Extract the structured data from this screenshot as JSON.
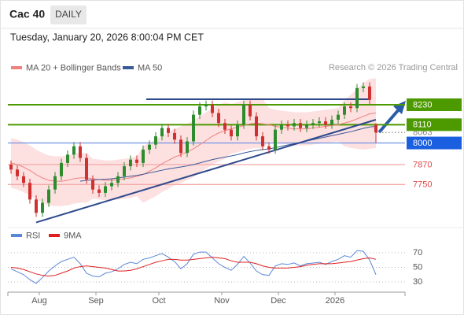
{
  "header": {
    "title": "Cac 40",
    "timeframe": "DAILY",
    "timestamp": "Tuesday, January 20, 2026 8:00:04 PM CET",
    "credit": "Research © 2026 Trading Central"
  },
  "chart_data": [
    {
      "type": "candlestick",
      "categories": [
        null,
        null,
        null,
        null,
        null,
        "Aug",
        null,
        null,
        null,
        null,
        null,
        null,
        null,
        null,
        "Sep",
        null,
        null,
        null,
        null,
        null,
        null,
        null,
        null,
        null,
        "Oct",
        null,
        null,
        null,
        null,
        null,
        null,
        null,
        null,
        null,
        "Nov",
        null,
        null,
        null,
        null,
        null,
        null,
        null,
        null,
        "Dec",
        null,
        null,
        null,
        null,
        null,
        null,
        null,
        null,
        "2026",
        null,
        null,
        null,
        null,
        null,
        null
      ],
      "open": [
        7870,
        7840,
        7800,
        7760,
        7660,
        7580,
        7640,
        7720,
        7800,
        7880,
        7930,
        7980,
        7910,
        7780,
        7720,
        7700,
        7740,
        7760,
        7800,
        7860,
        7900,
        7880,
        7960,
        7990,
        8040,
        8090,
        8060,
        8020,
        7940,
        8010,
        8170,
        8220,
        8230,
        8180,
        8120,
        8080,
        8040,
        8110,
        8230,
        8160,
        8040,
        7980,
        7960,
        8080,
        8110,
        8100,
        8120,
        8090,
        8110,
        8120,
        8130,
        8110,
        8140,
        8170,
        8220,
        8210,
        8330,
        8340,
        8110
      ],
      "high": [
        7895,
        7865,
        7825,
        7785,
        7685,
        7665,
        7745,
        7825,
        7905,
        7955,
        8005,
        8005,
        7935,
        7805,
        7745,
        7765,
        7785,
        7825,
        7885,
        7925,
        7925,
        7985,
        8015,
        8065,
        8115,
        8115,
        8085,
        8045,
        8035,
        8195,
        8245,
        8255,
        8255,
        8205,
        8145,
        8105,
        8135,
        8255,
        8255,
        8185,
        8065,
        8005,
        8105,
        8135,
        8135,
        8145,
        8145,
        8135,
        8145,
        8155,
        8155,
        8165,
        8195,
        8245,
        8245,
        8355,
        8365,
        8365,
        8120
      ],
      "low": [
        7815,
        7775,
        7735,
        7635,
        7555,
        7555,
        7615,
        7695,
        7775,
        7855,
        7905,
        7885,
        7755,
        7695,
        7675,
        7675,
        7715,
        7735,
        7775,
        7835,
        7855,
        7855,
        7935,
        7965,
        8015,
        8035,
        7995,
        7915,
        7915,
        7985,
        8145,
        8195,
        8155,
        8095,
        8055,
        8015,
        8015,
        8085,
        8135,
        8015,
        7955,
        7935,
        7935,
        8055,
        8075,
        8075,
        8065,
        8065,
        8085,
        8095,
        8085,
        8085,
        8115,
        8145,
        8185,
        8185,
        8305,
        8235,
        8000
      ],
      "close": [
        7840,
        7800,
        7760,
        7660,
        7580,
        7640,
        7720,
        7800,
        7880,
        7930,
        7980,
        7910,
        7780,
        7720,
        7700,
        7740,
        7760,
        7800,
        7860,
        7900,
        7880,
        7960,
        7990,
        8040,
        8090,
        8060,
        8020,
        7940,
        8010,
        8170,
        8220,
        8230,
        8180,
        8120,
        8080,
        8040,
        8110,
        8230,
        8160,
        8040,
        7980,
        7960,
        8080,
        8110,
        8100,
        8120,
        8090,
        8110,
        8120,
        8130,
        8110,
        8140,
        8170,
        8220,
        8210,
        8330,
        8340,
        8260,
        8063
      ],
      "up_color": "#2e8b2e",
      "down_color": "#d03030",
      "ylim": [
        7510,
        8410
      ],
      "series": [
        {
          "name": "MA 20 + Bollinger Bands",
          "color": "#f08080",
          "values": [
            7880,
            7870,
            7855,
            7835,
            7810,
            7790,
            7775,
            7770,
            7770,
            7775,
            7785,
            7790,
            7790,
            7785,
            7780,
            7775,
            7775,
            7780,
            7785,
            7790,
            7800,
            7810,
            7830,
            7850,
            7875,
            7895,
            7915,
            7930,
            7945,
            7965,
            7990,
            8015,
            8040,
            8060,
            8075,
            8085,
            8095,
            8105,
            8115,
            8120,
            8115,
            8110,
            8100,
            8095,
            8090,
            8085,
            8085,
            8085,
            8090,
            8095,
            8100,
            8105,
            8110,
            8120,
            8130,
            8145,
            8160,
            8175,
            8180
          ],
          "upper": [
            8030,
            8020,
            8005,
            7985,
            7960,
            7940,
            7925,
            7920,
            7920,
            7925,
            7935,
            7940,
            7940,
            7905,
            7900,
            7895,
            7895,
            7900,
            7905,
            7910,
            7920,
            7980,
            8000,
            8020,
            8045,
            8065,
            8085,
            8100,
            8115,
            8135,
            8160,
            8185,
            8210,
            8230,
            8245,
            8235,
            8245,
            8255,
            8265,
            8270,
            8265,
            8210,
            8200,
            8195,
            8190,
            8185,
            8185,
            8185,
            8190,
            8195,
            8200,
            8205,
            8210,
            8260,
            8290,
            8325,
            8360,
            8385,
            8390
          ],
          "lower": [
            7730,
            7720,
            7705,
            7685,
            7660,
            7640,
            7625,
            7620,
            7620,
            7625,
            7635,
            7640,
            7640,
            7665,
            7660,
            7655,
            7655,
            7660,
            7665,
            7670,
            7680,
            7640,
            7660,
            7680,
            7705,
            7725,
            7745,
            7760,
            7775,
            7795,
            7820,
            7845,
            7870,
            7890,
            7905,
            7935,
            7945,
            7955,
            7965,
            7970,
            7965,
            8010,
            8000,
            7995,
            7990,
            7985,
            7985,
            7985,
            7990,
            7995,
            8000,
            8005,
            8010,
            7980,
            7970,
            7965,
            7960,
            7965,
            7970
          ],
          "band_color": "#fde0e0"
        },
        {
          "name": "MA 50",
          "color": "#3a5a9a",
          "values": [
            null,
            null,
            null,
            null,
            null,
            null,
            null,
            null,
            null,
            null,
            null,
            7770,
            7775,
            7778,
            7780,
            7782,
            7785,
            7790,
            7795,
            7800,
            7805,
            7812,
            7820,
            7828,
            7836,
            7844,
            7850,
            7856,
            7862,
            7870,
            7880,
            7890,
            7900,
            7908,
            7915,
            7922,
            7930,
            7940,
            7948,
            7955,
            7960,
            7965,
            7972,
            7980,
            7988,
            7996,
            8004,
            8012,
            8020,
            8028,
            8036,
            8044,
            8052,
            8060,
            8068,
            8078,
            8088,
            8096,
            8100
          ]
        }
      ],
      "levels": [
        {
          "value": 8230,
          "color": "#4c9a00",
          "style": "box"
        },
        {
          "value": 8110,
          "color": "#4c9a00",
          "style": "box"
        },
        {
          "value": 8063,
          "color": "#888888",
          "style": "dotted"
        },
        {
          "value": 8000,
          "color": "#1a5fe0",
          "style": "box"
        },
        {
          "value": 7870,
          "color": "#e04848",
          "style": "text"
        },
        {
          "value": 7750,
          "color": "#e04848",
          "style": "text"
        }
      ],
      "trendlines": [
        {
          "color": "#2e4a8c",
          "points": [
            [
              4,
              7522
            ],
            [
              58,
              8140
            ]
          ]
        },
        {
          "color": "#2e4a8c",
          "points": [
            [
              21.5,
              8263
            ],
            [
              57,
              8263
            ]
          ]
        }
      ]
    },
    {
      "type": "line",
      "ylim": [
        20,
        80
      ],
      "yticks": [
        30,
        50,
        70
      ],
      "series": [
        {
          "name": "RSI",
          "color": "#5a86d8",
          "values": [
            48,
            44,
            40,
            33,
            28,
            36,
            45,
            52,
            58,
            61,
            64,
            55,
            42,
            38,
            37,
            42,
            44,
            48,
            54,
            57,
            55,
            61,
            63,
            66,
            69,
            64,
            58,
            48,
            55,
            68,
            71,
            71,
            63,
            55,
            50,
            46,
            54,
            65,
            56,
            45,
            40,
            39,
            52,
            55,
            54,
            56,
            52,
            55,
            56,
            57,
            54,
            58,
            61,
            66,
            64,
            73,
            72,
            60,
            40
          ]
        },
        {
          "name": "9MA",
          "color": "#e02020",
          "values": [
            50,
            49,
            47,
            44,
            41,
            39,
            38,
            39,
            42,
            45,
            49,
            51,
            52,
            51,
            50,
            49,
            47,
            45,
            45,
            46,
            48,
            51,
            54,
            57,
            59,
            61,
            61,
            60,
            60,
            61,
            62,
            63,
            64,
            63,
            62,
            59,
            57,
            57,
            57,
            55,
            52,
            50,
            49,
            49,
            49,
            50,
            51,
            53,
            54,
            55,
            55,
            55,
            56,
            57,
            58,
            60,
            62,
            63,
            61
          ]
        }
      ]
    }
  ]
}
